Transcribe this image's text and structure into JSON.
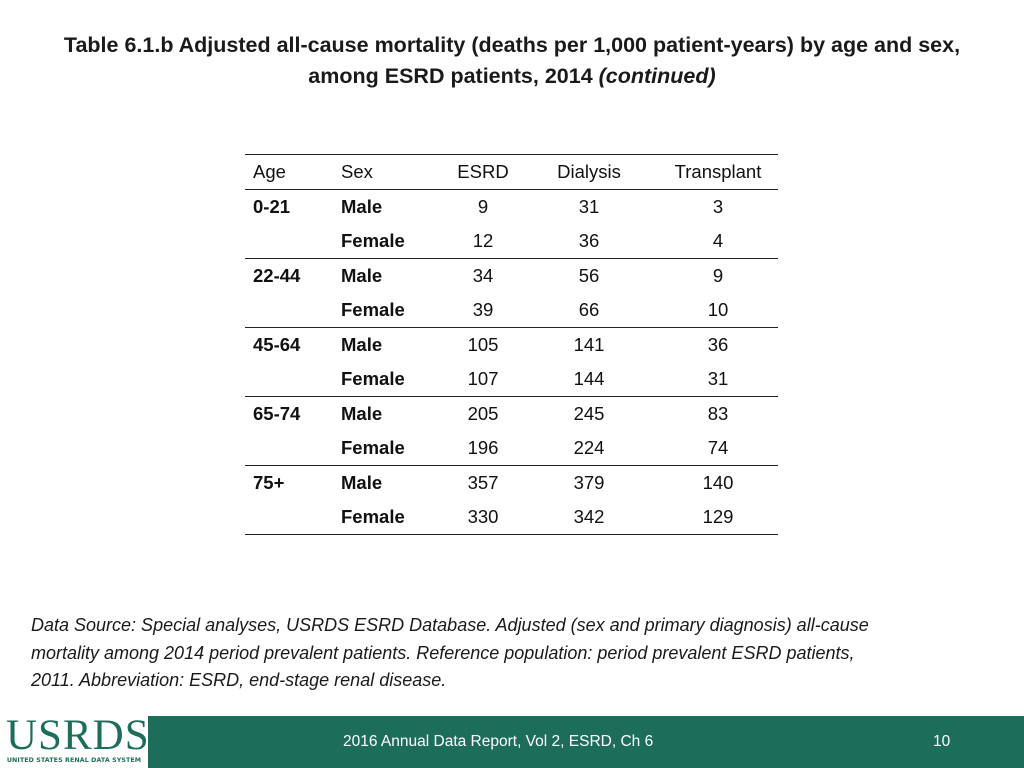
{
  "title": {
    "line1": "Table 6.1.b  Adjusted all-cause mortality (deaths per 1,000 patient-years) by age and sex,",
    "line2_main": "among ESRD patients, 2014 ",
    "line2_italic": "(continued)"
  },
  "table": {
    "columns": [
      "Age",
      "Sex",
      "ESRD",
      "Dialysis",
      "Transplant"
    ],
    "groups": [
      {
        "age": "0-21",
        "rows": [
          {
            "sex": "Male",
            "esrd": "9",
            "dialysis": "31",
            "transplant": "3"
          },
          {
            "sex": "Female",
            "esrd": "12",
            "dialysis": "36",
            "transplant": "4"
          }
        ]
      },
      {
        "age": "22-44",
        "rows": [
          {
            "sex": "Male",
            "esrd": "34",
            "dialysis": "56",
            "transplant": "9"
          },
          {
            "sex": "Female",
            "esrd": "39",
            "dialysis": "66",
            "transplant": "10"
          }
        ]
      },
      {
        "age": "45-64",
        "rows": [
          {
            "sex": "Male",
            "esrd": "105",
            "dialysis": "141",
            "transplant": "36"
          },
          {
            "sex": "Female",
            "esrd": "107",
            "dialysis": "144",
            "transplant": "31"
          }
        ]
      },
      {
        "age": "65-74",
        "rows": [
          {
            "sex": "Male",
            "esrd": "205",
            "dialysis": "245",
            "transplant": "83"
          },
          {
            "sex": "Female",
            "esrd": "196",
            "dialysis": "224",
            "transplant": "74"
          }
        ]
      },
      {
        "age": "75+",
        "rows": [
          {
            "sex": "Male",
            "esrd": "357",
            "dialysis": "379",
            "transplant": "140"
          },
          {
            "sex": "Female",
            "esrd": "330",
            "dialysis": "342",
            "transplant": "129"
          }
        ]
      }
    ]
  },
  "source": {
    "line1": "Data Source: Special analyses, USRDS ESRD Database. Adjusted (sex and primary diagnosis) all-cause",
    "line2": "mortality among 2014 period prevalent patients. Reference population: period prevalent ESRD patients,",
    "line3": "2011. Abbreviation: ESRD, end-stage renal disease."
  },
  "footer": {
    "logo_text": "USRDS",
    "logo_tagline": "UNITED STATES RENAL DATA SYSTEM",
    "report_label": "2016 Annual Data Report, Vol 2, ESRD, Ch 6",
    "page_number": "10"
  },
  "colors": {
    "brand_green": "#1d6d5b",
    "text": "#111111",
    "background": "#ffffff"
  }
}
